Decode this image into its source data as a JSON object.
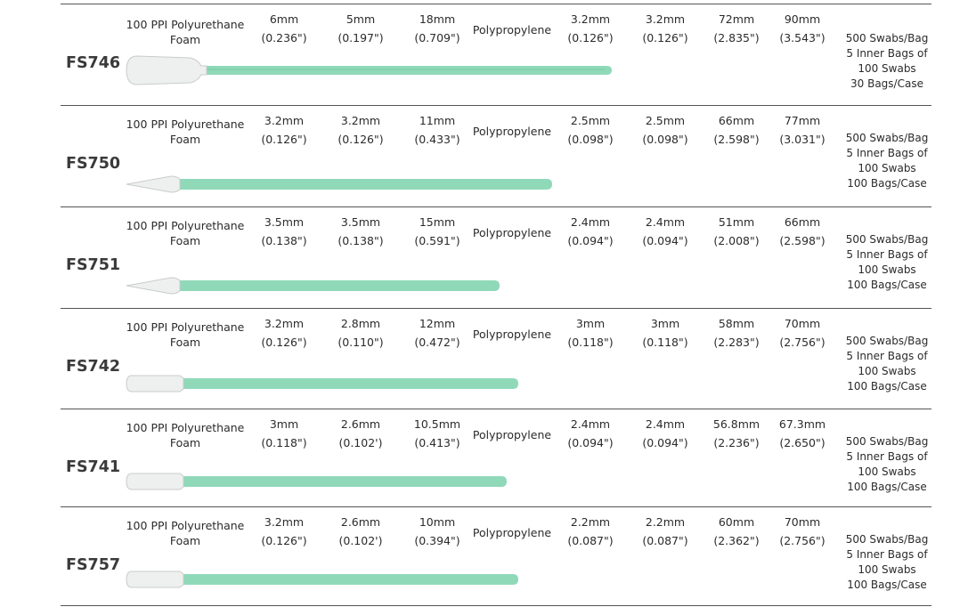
{
  "rows": [
    {
      "model": "FS746",
      "foam": [
        "100 PPI Polyurethane",
        "Foam"
      ],
      "d1": [
        "6mm",
        "(0.236\")"
      ],
      "d2": [
        "5mm",
        "(0.197\")"
      ],
      "d3": [
        "18mm",
        "(0.709\")"
      ],
      "material": "Polypropylene",
      "d4": [
        "3.2mm",
        "(0.126\")"
      ],
      "d5": [
        "3.2mm",
        "(0.126\")"
      ],
      "d6": [
        "72mm",
        "(2.835\")"
      ],
      "d7": [
        "90mm",
        "(3.543\")"
      ],
      "pack": [
        "500 Swabs/Bag",
        "5 Inner Bags of",
        "100 Swabs",
        "30 Bags/Case"
      ],
      "swab": {
        "tip": "paddle",
        "length_mm": 90
      }
    },
    {
      "model": "FS750",
      "foam": [
        "100 PPI Polyurethane",
        "Foam"
      ],
      "d1": [
        "3.2mm",
        "(0.126\")"
      ],
      "d2": [
        "3.2mm",
        "(0.126\")"
      ],
      "d3": [
        "11mm",
        "(0.433\")"
      ],
      "material": "Polypropylene",
      "d4": [
        "2.5mm",
        "(0.098\")"
      ],
      "d5": [
        "2.5mm",
        "(0.098\")"
      ],
      "d6": [
        "66mm",
        "(2.598\")"
      ],
      "d7": [
        "77mm",
        "(3.031\")"
      ],
      "pack": [
        "500 Swabs/Bag",
        "5 Inner Bags of",
        "100 Swabs",
        "100 Bags/Case"
      ],
      "swab": {
        "tip": "pointed",
        "length_mm": 77
      }
    },
    {
      "model": "FS751",
      "foam": [
        "100 PPI Polyurethane",
        "Foam"
      ],
      "d1": [
        "3.5mm",
        "(0.138\")"
      ],
      "d2": [
        "3.5mm",
        "(0.138\")"
      ],
      "d3": [
        "15mm",
        "(0.591\")"
      ],
      "material": "Polypropylene",
      "d4": [
        "2.4mm",
        "(0.094\")"
      ],
      "d5": [
        "2.4mm",
        "(0.094\")"
      ],
      "d6": [
        "51mm",
        "(2.008\")"
      ],
      "d7": [
        "66mm",
        "(2.598\")"
      ],
      "pack": [
        "500 Swabs/Bag",
        "5 Inner Bags of",
        "100 Swabs",
        "100 Bags/Case"
      ],
      "swab": {
        "tip": "pointed",
        "length_mm": 66
      }
    },
    {
      "model": "FS742",
      "foam": [
        "100 PPI Polyurethane",
        "Foam"
      ],
      "d1": [
        "3.2mm",
        "(0.126\")"
      ],
      "d2": [
        "2.8mm",
        "(0.110\")"
      ],
      "d3": [
        "12mm",
        "(0.472\")"
      ],
      "material": "Polypropylene",
      "d4": [
        "3mm",
        "(0.118\")"
      ],
      "d5": [
        "3mm",
        "(0.118\")"
      ],
      "d6": [
        "58mm",
        "(2.283\")"
      ],
      "d7": [
        "70mm",
        "(2.756\")"
      ],
      "pack": [
        "500 Swabs/Bag",
        "5 Inner Bags of",
        "100 Swabs",
        "100 Bags/Case"
      ],
      "swab": {
        "tip": "rectangular",
        "length_mm": 70
      }
    },
    {
      "model": "FS741",
      "foam": [
        "100 PPI Polyurethane",
        "Foam"
      ],
      "d1": [
        "3mm",
        "(0.118\")"
      ],
      "d2": [
        "2.6mm",
        "(0.102')"
      ],
      "d3": [
        "10.5mm",
        "(0.413\")"
      ],
      "material": "Polypropylene",
      "d4": [
        "2.4mm",
        "(0.094\")"
      ],
      "d5": [
        "2.4mm",
        "(0.094\")"
      ],
      "d6": [
        "56.8mm",
        "(2.236\")"
      ],
      "d7": [
        "67.3mm",
        "(2.650\")"
      ],
      "pack": [
        "500 Swabs/Bag",
        "5 Inner Bags of",
        "100 Swabs",
        "100 Bags/Case"
      ],
      "swab": {
        "tip": "rectangular",
        "length_mm": 67.3
      }
    },
    {
      "model": "FS757",
      "foam": [
        "100 PPI Polyurethane",
        "Foam"
      ],
      "d1": [
        "3.2mm",
        "(0.126\")"
      ],
      "d2": [
        "2.6mm",
        "(0.102')"
      ],
      "d3": [
        "10mm",
        "(0.394\")"
      ],
      "material": "Polypropylene",
      "d4": [
        "2.2mm",
        "(0.087\")"
      ],
      "d5": [
        "2.2mm",
        "(0.087\")"
      ],
      "d6": [
        "60mm",
        "(2.362\")"
      ],
      "d7": [
        "70mm",
        "(2.756\")"
      ],
      "pack": [
        "500 Swabs/Bag",
        "5 Inner Bags of",
        "100 Swabs",
        "100 Bags/Case"
      ],
      "swab": {
        "tip": "rectangular",
        "length_mm": 70
      }
    }
  ],
  "colors": {
    "handle": "#8fd9b9",
    "handle_dark": "#6cc49f",
    "foam": "#eef0ef",
    "foam_edge": "#c9cccb",
    "rule": "#555555"
  }
}
